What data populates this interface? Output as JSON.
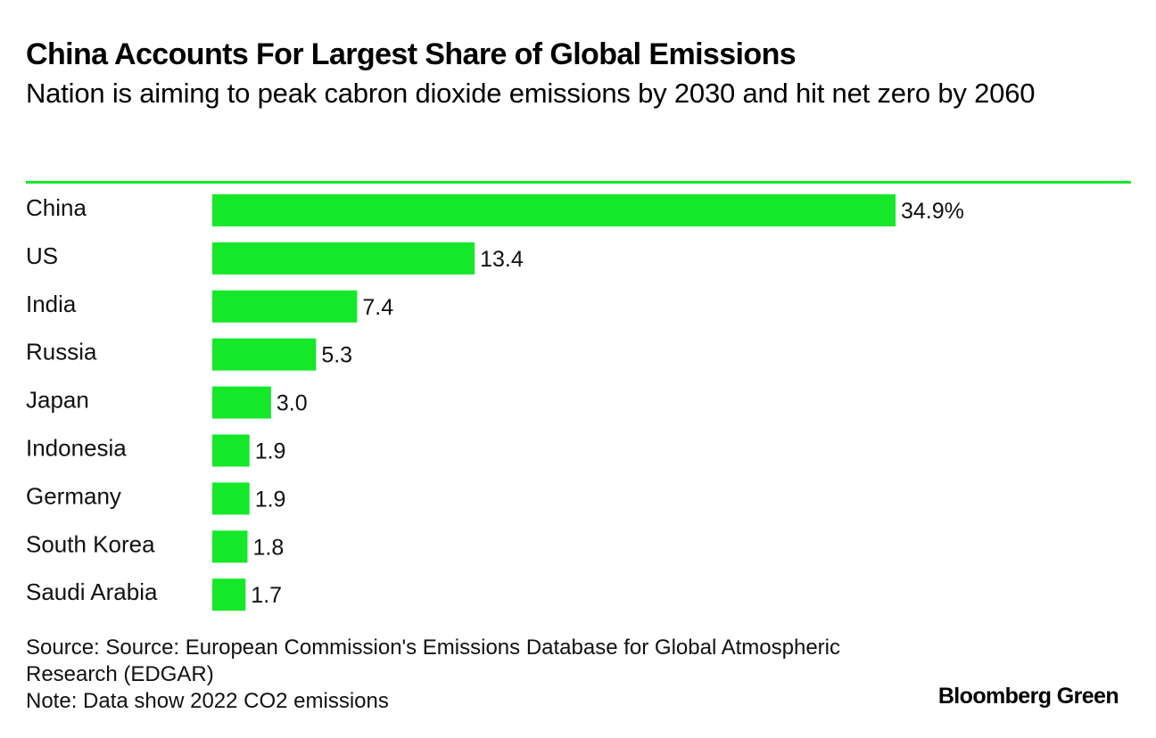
{
  "colors": {
    "accent": "#14e829",
    "text": "#111111"
  },
  "chart_data": {
    "type": "bar",
    "orientation": "horizontal",
    "title": "China Accounts For Largest Share of Global Emissions",
    "subtitle": "Nation is aiming to peak cabron dioxide emissions by 2030 and hit net zero by 2060",
    "categories": [
      "China",
      "US",
      "India",
      "Russia",
      "Japan",
      "Indonesia",
      "Germany",
      "South Korea",
      "Saudi Arabia"
    ],
    "values": [
      34.9,
      13.4,
      7.4,
      5.3,
      3.0,
      1.9,
      1.9,
      1.8,
      1.7
    ],
    "value_labels": [
      "34.9%",
      "13.4",
      "7.4",
      "5.3",
      "3.0",
      "1.9",
      "1.9",
      "1.8",
      "1.7"
    ],
    "unit": "%",
    "xlabel": "",
    "ylabel": "",
    "xlim": [
      0,
      34.9
    ]
  },
  "footer": {
    "source": "Source: Source: European Commission's Emissions Database for Global Atmospheric Research (EDGAR)",
    "note": "Note: Data show 2022 CO2 emissions"
  },
  "brand": "Bloomberg Green"
}
